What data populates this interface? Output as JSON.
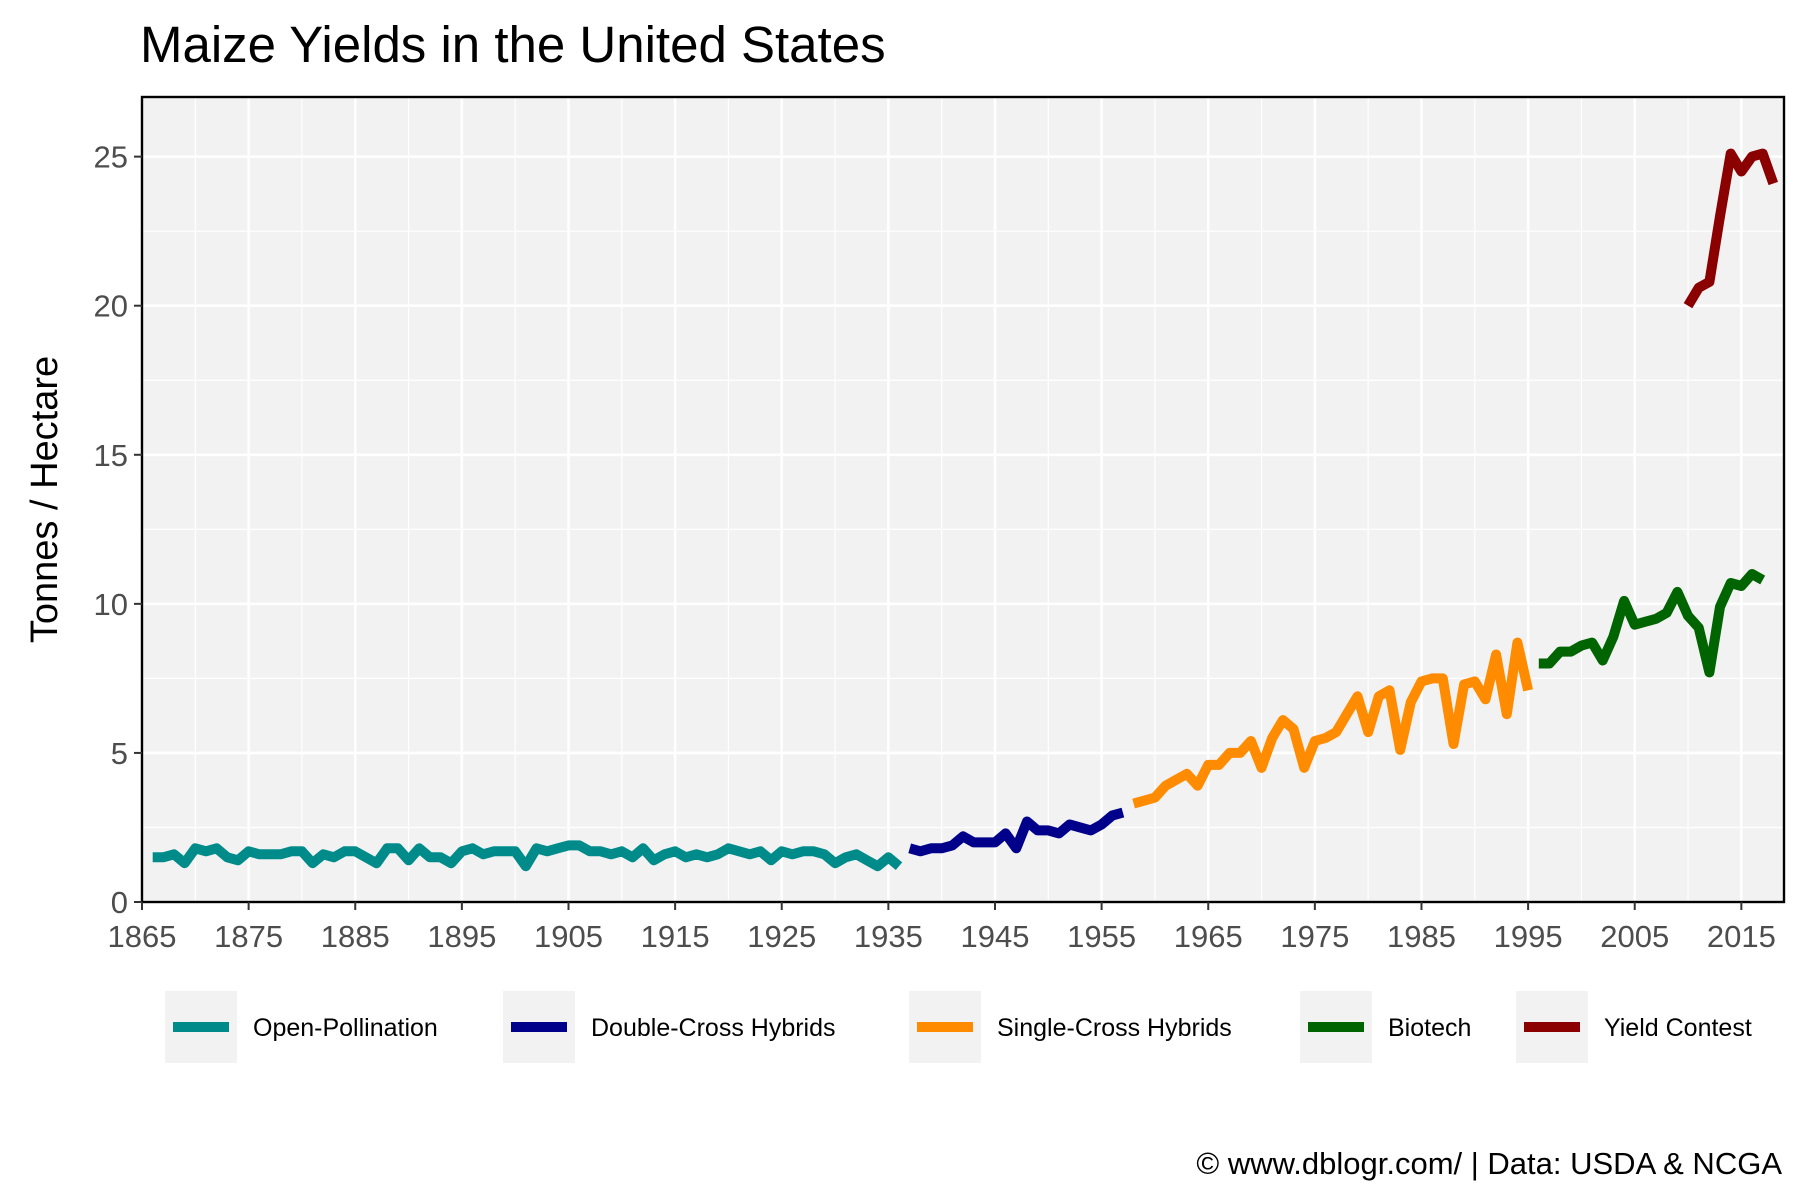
{
  "chart_data": {
    "type": "line",
    "title": "Maize Yields in the United States",
    "xlabel": "",
    "ylabel": "Tonnes / Hectare",
    "xlim": [
      1865,
      2019
    ],
    "ylim": [
      0,
      27
    ],
    "x_ticks": [
      "1865",
      "1875",
      "1885",
      "1895",
      "1905",
      "1915",
      "1925",
      "1935",
      "1945",
      "1955",
      "1965",
      "1975",
      "1985",
      "1995",
      "2005",
      "2015"
    ],
    "y_ticks": [
      "0",
      "5",
      "10",
      "15",
      "20",
      "25"
    ],
    "grid": true,
    "legend_position": "bottom",
    "caption": "© www.dblogr.com/  |  Data: USDA & NCGA",
    "series": [
      {
        "name": "Open-Pollination",
        "color": "#008b8b",
        "points": [
          [
            1866,
            1.5
          ],
          [
            1867,
            1.5
          ],
          [
            1868,
            1.6
          ],
          [
            1869,
            1.3
          ],
          [
            1870,
            1.8
          ],
          [
            1871,
            1.7
          ],
          [
            1872,
            1.8
          ],
          [
            1873,
            1.5
          ],
          [
            1874,
            1.4
          ],
          [
            1875,
            1.7
          ],
          [
            1876,
            1.6
          ],
          [
            1877,
            1.6
          ],
          [
            1878,
            1.6
          ],
          [
            1879,
            1.7
          ],
          [
            1880,
            1.7
          ],
          [
            1881,
            1.3
          ],
          [
            1882,
            1.6
          ],
          [
            1883,
            1.5
          ],
          [
            1884,
            1.7
          ],
          [
            1885,
            1.7
          ],
          [
            1886,
            1.5
          ],
          [
            1887,
            1.3
          ],
          [
            1888,
            1.8
          ],
          [
            1889,
            1.8
          ],
          [
            1890,
            1.4
          ],
          [
            1891,
            1.8
          ],
          [
            1892,
            1.5
          ],
          [
            1893,
            1.5
          ],
          [
            1894,
            1.3
          ],
          [
            1895,
            1.7
          ],
          [
            1896,
            1.8
          ],
          [
            1897,
            1.6
          ],
          [
            1898,
            1.7
          ],
          [
            1899,
            1.7
          ],
          [
            1900,
            1.7
          ],
          [
            1901,
            1.2
          ],
          [
            1902,
            1.8
          ],
          [
            1903,
            1.7
          ],
          [
            1904,
            1.8
          ],
          [
            1905,
            1.9
          ],
          [
            1906,
            1.9
          ],
          [
            1907,
            1.7
          ],
          [
            1908,
            1.7
          ],
          [
            1909,
            1.6
          ],
          [
            1910,
            1.7
          ],
          [
            1911,
            1.5
          ],
          [
            1912,
            1.8
          ],
          [
            1913,
            1.4
          ],
          [
            1914,
            1.6
          ],
          [
            1915,
            1.7
          ],
          [
            1916,
            1.5
          ],
          [
            1917,
            1.6
          ],
          [
            1918,
            1.5
          ],
          [
            1919,
            1.6
          ],
          [
            1920,
            1.8
          ],
          [
            1921,
            1.7
          ],
          [
            1922,
            1.6
          ],
          [
            1923,
            1.7
          ],
          [
            1924,
            1.4
          ],
          [
            1925,
            1.7
          ],
          [
            1926,
            1.6
          ],
          [
            1927,
            1.7
          ],
          [
            1928,
            1.7
          ],
          [
            1929,
            1.6
          ],
          [
            1930,
            1.3
          ],
          [
            1931,
            1.5
          ],
          [
            1932,
            1.6
          ],
          [
            1933,
            1.4
          ],
          [
            1934,
            1.2
          ],
          [
            1935,
            1.5
          ],
          [
            1936,
            1.2
          ]
        ]
      },
      {
        "name": "Double-Cross Hybrids",
        "color": "#00008b",
        "points": [
          [
            1937,
            1.8
          ],
          [
            1938,
            1.7
          ],
          [
            1939,
            1.8
          ],
          [
            1940,
            1.8
          ],
          [
            1941,
            1.9
          ],
          [
            1942,
            2.2
          ],
          [
            1943,
            2.0
          ],
          [
            1944,
            2.0
          ],
          [
            1945,
            2.0
          ],
          [
            1946,
            2.3
          ],
          [
            1947,
            1.8
          ],
          [
            1948,
            2.7
          ],
          [
            1949,
            2.4
          ],
          [
            1950,
            2.4
          ],
          [
            1951,
            2.3
          ],
          [
            1952,
            2.6
          ],
          [
            1953,
            2.5
          ],
          [
            1954,
            2.4
          ],
          [
            1955,
            2.6
          ],
          [
            1956,
            2.9
          ],
          [
            1957,
            3.0
          ]
        ]
      },
      {
        "name": "Single-Cross Hybrids",
        "color": "#ff8c00",
        "points": [
          [
            1958,
            3.3
          ],
          [
            1959,
            3.4
          ],
          [
            1960,
            3.5
          ],
          [
            1961,
            3.9
          ],
          [
            1962,
            4.1
          ],
          [
            1963,
            4.3
          ],
          [
            1964,
            3.9
          ],
          [
            1965,
            4.6
          ],
          [
            1966,
            4.6
          ],
          [
            1967,
            5.0
          ],
          [
            1968,
            5.0
          ],
          [
            1969,
            5.4
          ],
          [
            1970,
            4.5
          ],
          [
            1971,
            5.5
          ],
          [
            1972,
            6.1
          ],
          [
            1973,
            5.8
          ],
          [
            1974,
            4.5
          ],
          [
            1975,
            5.4
          ],
          [
            1976,
            5.5
          ],
          [
            1977,
            5.7
          ],
          [
            1978,
            6.3
          ],
          [
            1979,
            6.9
          ],
          [
            1980,
            5.7
          ],
          [
            1981,
            6.9
          ],
          [
            1982,
            7.1
          ],
          [
            1983,
            5.1
          ],
          [
            1984,
            6.7
          ],
          [
            1985,
            7.4
          ],
          [
            1986,
            7.5
          ],
          [
            1987,
            7.5
          ],
          [
            1988,
            5.3
          ],
          [
            1989,
            7.3
          ],
          [
            1990,
            7.4
          ],
          [
            1991,
            6.8
          ],
          [
            1992,
            8.3
          ],
          [
            1993,
            6.3
          ],
          [
            1994,
            8.7
          ],
          [
            1995,
            7.1
          ]
        ]
      },
      {
        "name": "Biotech",
        "color": "#006400",
        "points": [
          [
            1996,
            8.0
          ],
          [
            1997,
            8.0
          ],
          [
            1998,
            8.4
          ],
          [
            1999,
            8.4
          ],
          [
            2000,
            8.6
          ],
          [
            2001,
            8.7
          ],
          [
            2002,
            8.1
          ],
          [
            2003,
            8.9
          ],
          [
            2004,
            10.1
          ],
          [
            2005,
            9.3
          ],
          [
            2006,
            9.4
          ],
          [
            2007,
            9.5
          ],
          [
            2008,
            9.7
          ],
          [
            2009,
            10.4
          ],
          [
            2010,
            9.6
          ],
          [
            2011,
            9.2
          ],
          [
            2012,
            7.7
          ],
          [
            2013,
            9.9
          ],
          [
            2014,
            10.7
          ],
          [
            2015,
            10.6
          ],
          [
            2016,
            11.0
          ],
          [
            2017,
            10.8
          ]
        ]
      },
      {
        "name": "Yield Contest",
        "color": "#8b0000",
        "points": [
          [
            2010,
            20.0
          ],
          [
            2011,
            20.6
          ],
          [
            2012,
            20.8
          ],
          [
            2013,
            23.0
          ],
          [
            2014,
            25.1
          ],
          [
            2015,
            24.5
          ],
          [
            2016,
            25.0
          ],
          [
            2017,
            25.1
          ],
          [
            2018,
            24.1
          ]
        ]
      }
    ]
  }
}
